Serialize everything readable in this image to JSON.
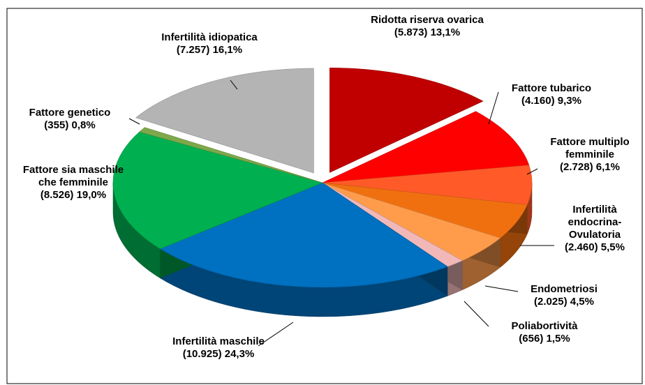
{
  "chart_data": {
    "type": "pie3d",
    "categories": [
      "Ridotta riserva ovarica",
      "Fattore tubarico",
      "Fattore multiplo femminile",
      "Infertilità endocrina-Ovulatoria",
      "Endometriosi",
      "Poliabortività",
      "Infertilità maschile",
      "Fattore sia maschile che femminile",
      "Fattore genetico",
      "Infertilità idiopatica"
    ],
    "values": [
      5873,
      4160,
      2728,
      2460,
      2025,
      656,
      10925,
      8526,
      355,
      7257
    ],
    "value_labels": [
      "(5.873)",
      "(4.160)",
      "(2.728)",
      "(2.460)",
      "(2.025)",
      "(656)",
      "(10.925)",
      "(8.526)",
      "(355)",
      "(7.257)"
    ],
    "percentages": [
      13.1,
      9.3,
      6.1,
      5.5,
      4.5,
      1.5,
      24.3,
      19.0,
      0.8,
      16.1
    ],
    "percentage_labels": [
      "13,1%",
      "9,3%",
      "6,1%",
      "5,5%",
      "4,5%",
      "1,5%",
      "24,3%",
      "19,0%",
      "0,8%",
      "16,1%"
    ],
    "colors": [
      "#c00000",
      "#ff0000",
      "#ff5a28",
      "#f07010",
      "#ff9c4c",
      "#f2b8b8",
      "#0070c0",
      "#00b050",
      "#7ea84a",
      "#b4b4b4"
    ],
    "exploded": [
      true,
      false,
      false,
      false,
      false,
      false,
      false,
      false,
      false,
      true
    ]
  }
}
